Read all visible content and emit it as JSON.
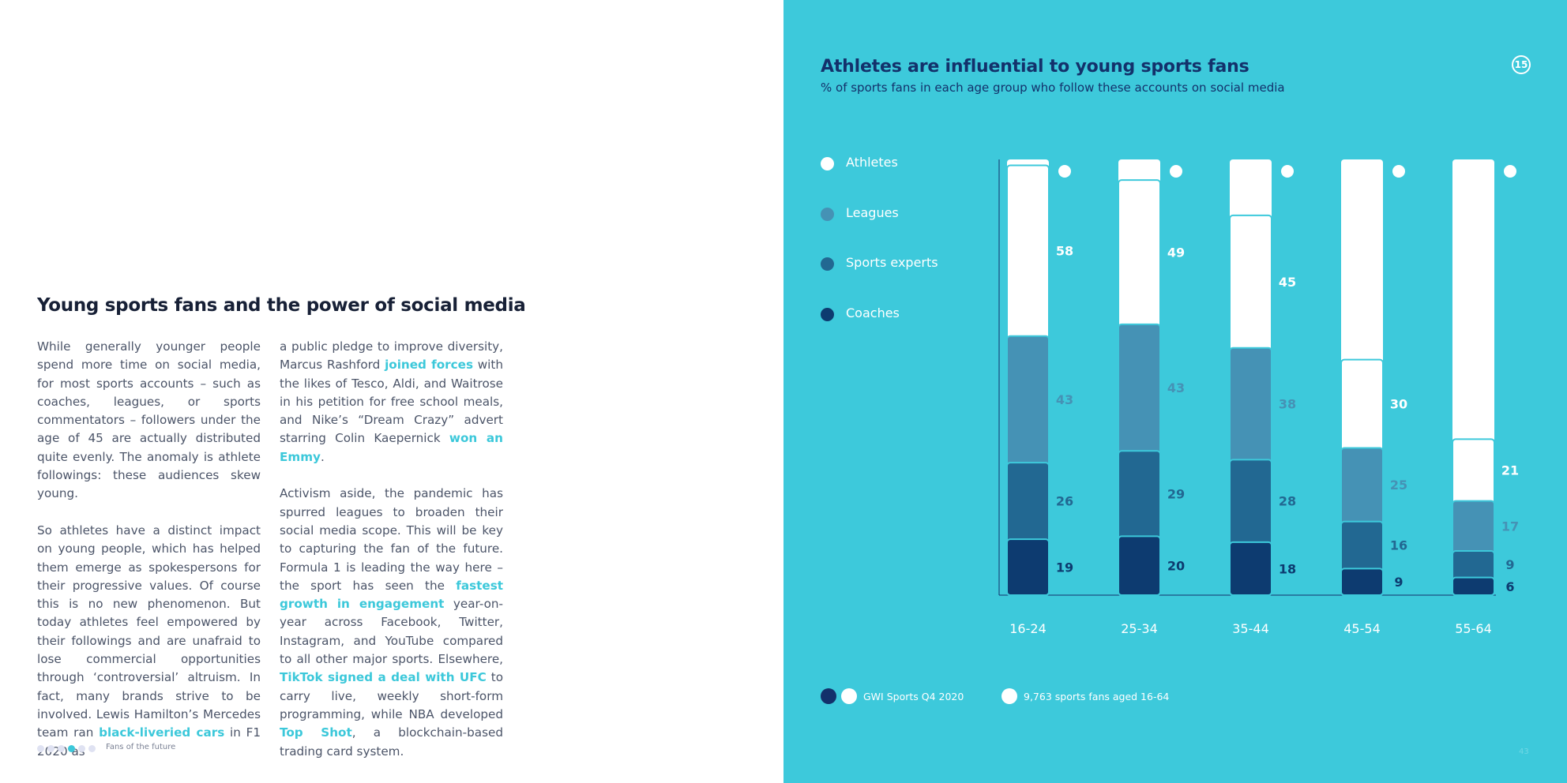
{
  "article": {
    "title": "Young sports fans and the power of social media",
    "col1": {
      "p1": "While generally younger people spend more time on social media, for most sports accounts – such as coaches, leagues, or sports commentators – followers under the age of 45 are actually distributed quite evenly. The anomaly is athlete followings: these audiences skew young.",
      "p2_a": "So athletes have a distinct impact on young people, which has helped them emerge as spokespersons for their progressive values. Of course this is no new phenomenon. But today athletes feel empowered by their followings and are unafraid to lose commercial opportunities through ‘controversial’ altruism. In fact, many brands strive to be involved. Lewis Hamilton’s Mercedes team ran ",
      "p2_link": "black-liveried cars",
      "p2_b": " in F1 2020 as"
    },
    "col2": {
      "p1_a": "a public pledge to improve diversity, Marcus Rashford ",
      "p1_link1": "joined forces",
      "p1_b": " with the likes of Tesco, Aldi, and Waitrose in his petition for free school meals, and Nike’s “Dream Crazy” advert starring Colin Kaepernick ",
      "p1_link2": "won an Emmy",
      "p1_c": ".",
      "p2_a": "Activism aside, the pandemic has spurred leagues to broaden their social media scope. This will be key to capturing the fan of the future. Formula 1 is leading the way here – the sport has seen the ",
      "p2_link1": "fastest growth in engagement",
      "p2_b": " year-on-year across Facebook, Twitter, Instagram, and YouTube compared to all other major sports. Elsewhere, ",
      "p2_link2": "TikTok signed a deal with UFC",
      "p2_c": " to carry live, weekly short-form programming, while NBA developed ",
      "p2_link3": "Top Shot",
      "p2_d": ", a blockchain-based trading card system."
    },
    "footer_label": "Fans of the future"
  },
  "right": {
    "chart_number": "15",
    "page_number": "43",
    "source": "GWI Sports Q4 2020",
    "base": "9,763 sports fans aged 16-64"
  },
  "colors": {
    "background": "#3dc9db",
    "athletes": "#ffffff",
    "leagues": "#4592b5",
    "sports_experts": "#226892",
    "coaches": "#0d3b70",
    "title": "#13316b"
  },
  "chart_data": {
    "type": "bar",
    "title": "Athletes are influential to young sports fans",
    "subtitle": "% of sports fans in each age group who follow these accounts on social media",
    "categories": [
      "16-24",
      "25-34",
      "35-44",
      "45-54",
      "55-64"
    ],
    "series": [
      {
        "name": "Athletes",
        "values": [
          58,
          49,
          45,
          30,
          21
        ]
      },
      {
        "name": "Leagues",
        "values": [
          43,
          43,
          38,
          25,
          17
        ]
      },
      {
        "name": "Sports experts",
        "values": [
          26,
          29,
          28,
          16,
          9
        ]
      },
      {
        "name": "Coaches",
        "values": [
          19,
          20,
          18,
          9,
          6
        ]
      }
    ],
    "ylim": [
      0,
      148
    ]
  }
}
